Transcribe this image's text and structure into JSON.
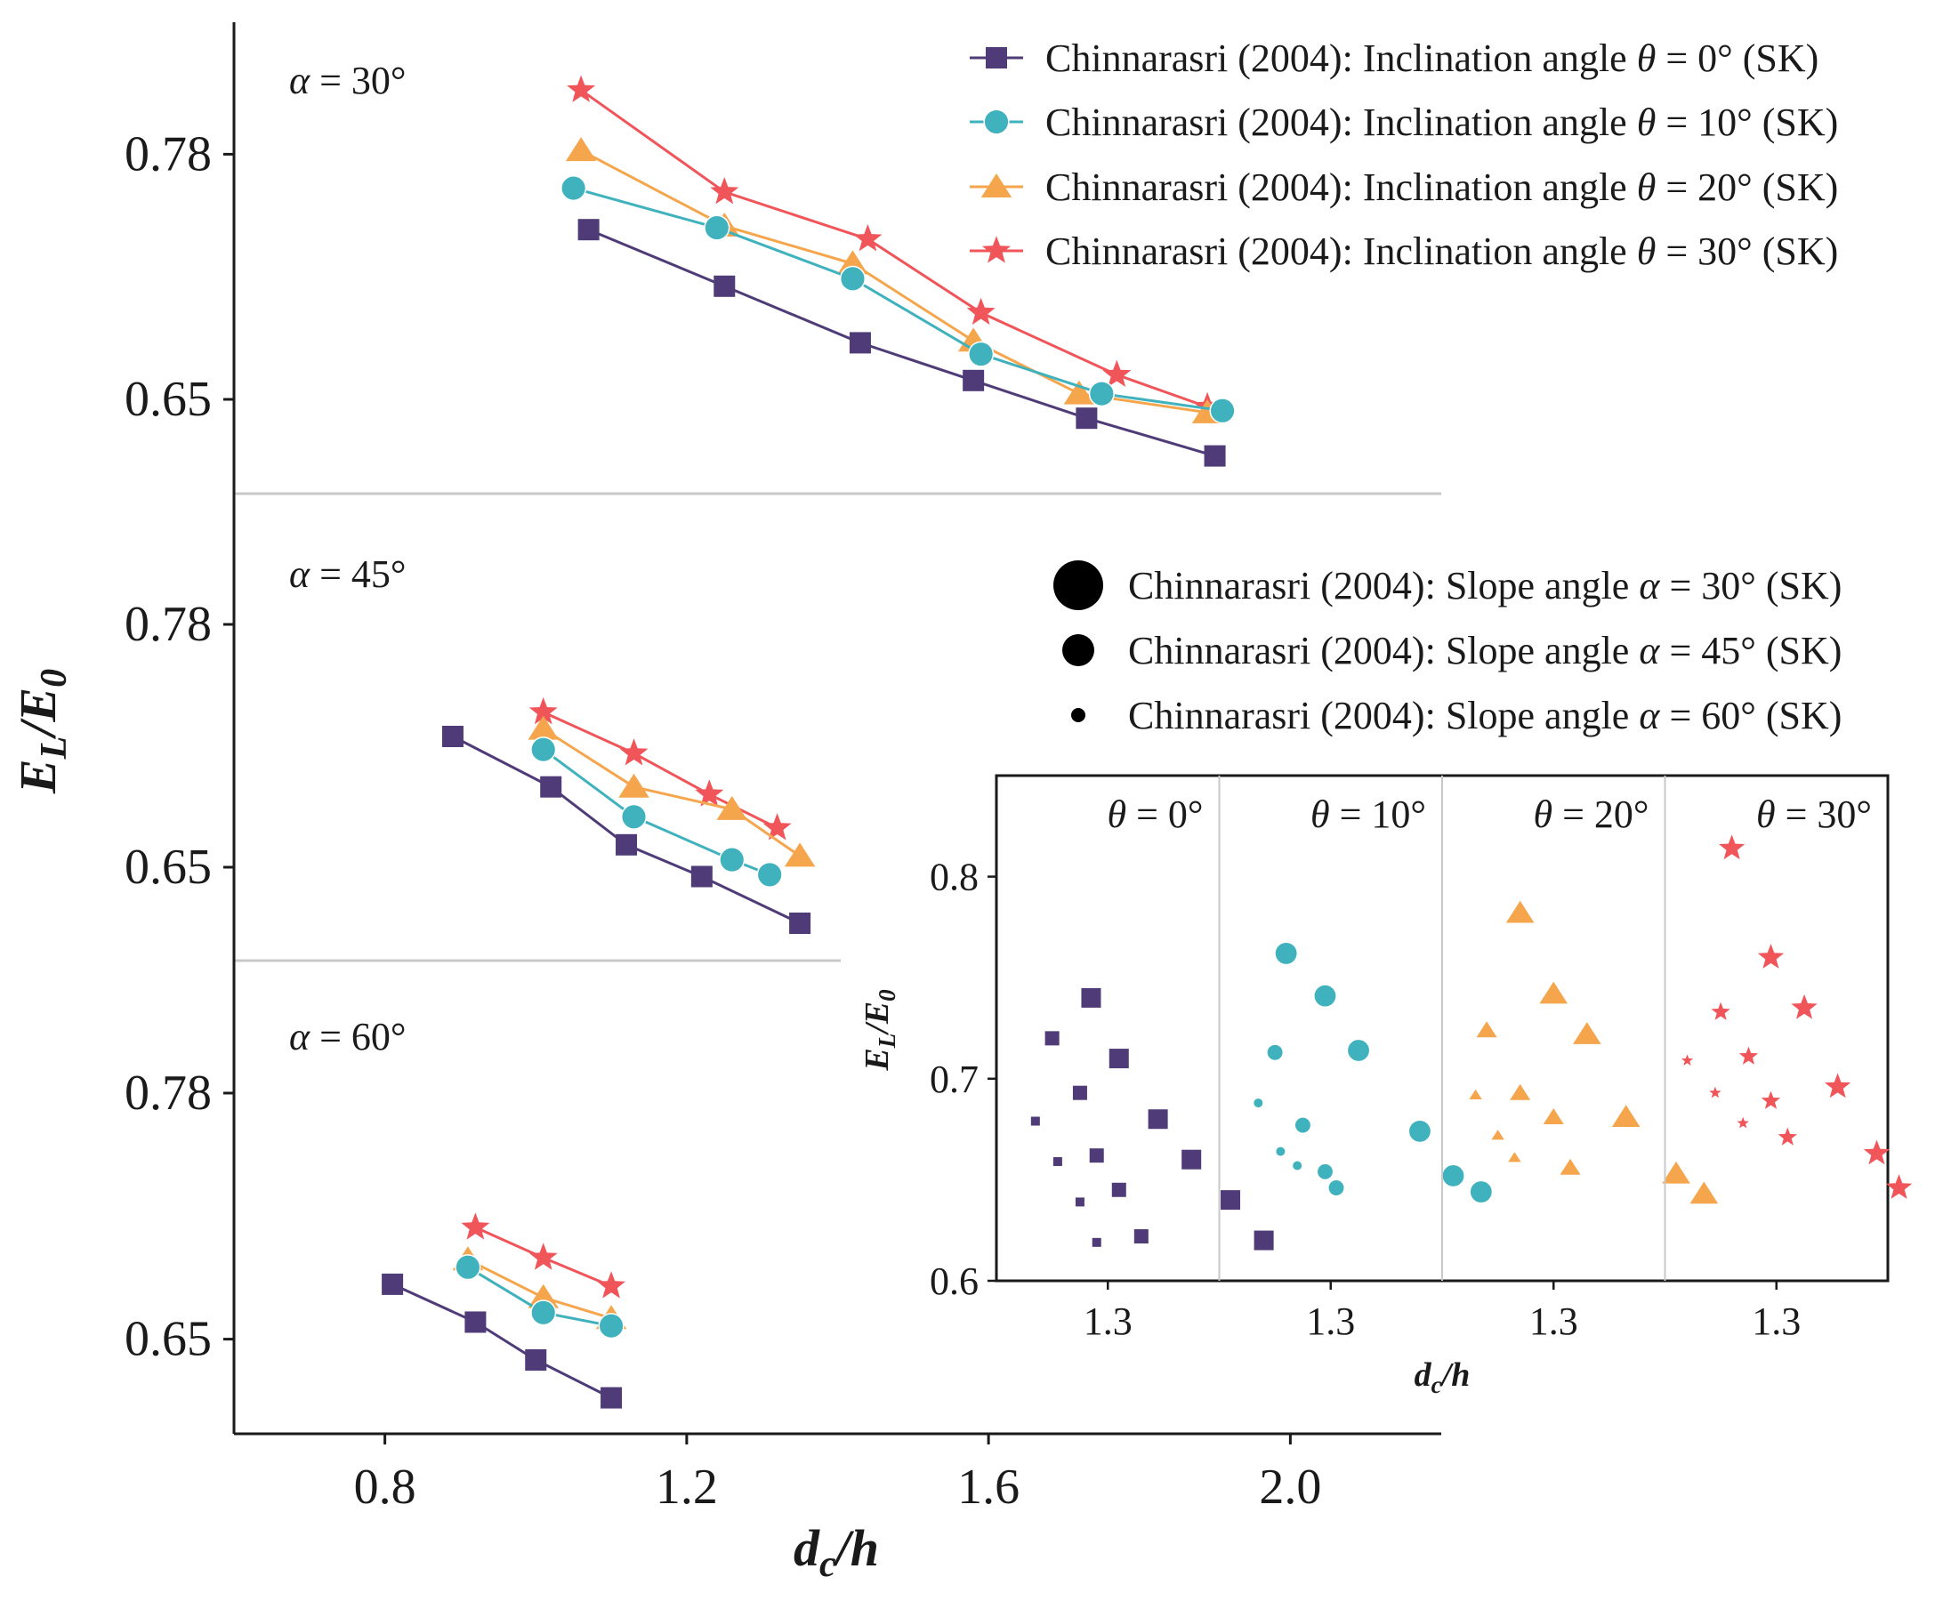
{
  "chart_data": {
    "type": "line",
    "x_label": {
      "var": "d",
      "sub": "c",
      "tail": "/h"
    },
    "y_label": {
      "main": "E",
      "sub1": "L",
      "slash": "/E",
      "sub2": "0"
    },
    "x_ticks": [
      "0.8",
      "1.2",
      "1.6",
      "2.0"
    ],
    "x_tick_values": [
      0.8,
      1.2,
      1.6,
      2.0
    ],
    "xlim": [
      0.6,
      2.2
    ],
    "y_tick_labels": [
      "0.65",
      "0.78"
    ],
    "y_tick_values": [
      0.65,
      0.78
    ],
    "panel_ylim": [
      0.6,
      0.85
    ],
    "colors": {
      "theta0": "#4e3b77",
      "theta10": "#3fb2bd",
      "theta20": "#f5a64d",
      "theta30": "#f0555a",
      "divider": "#c8c8c8",
      "axis": "#1a1a1a"
    },
    "panels": [
      {
        "label": "α = 30°",
        "series": [
          {
            "theta": 0,
            "marker": "square",
            "x": [
              1.07,
              1.25,
              1.43,
              1.58,
              1.73,
              1.9
            ],
            "y": [
              0.74,
              0.71,
              0.68,
              0.66,
              0.64,
              0.62
            ]
          },
          {
            "theta": 10,
            "marker": "circle",
            "x": [
              1.05,
              1.24,
              1.42,
              1.59,
              1.75,
              1.91
            ],
            "y": [
              0.762,
              0.741,
              0.714,
              0.674,
              0.653,
              0.644
            ]
          },
          {
            "theta": 20,
            "marker": "triangle",
            "x": [
              1.06,
              1.25,
              1.42,
              1.58,
              1.72,
              1.89
            ],
            "y": [
              0.782,
              0.742,
              0.722,
              0.681,
              0.653,
              0.643
            ]
          },
          {
            "theta": 30,
            "marker": "star",
            "x": [
              1.06,
              1.25,
              1.44,
              1.59,
              1.77,
              1.89
            ],
            "y": [
              0.814,
              0.76,
              0.735,
              0.696,
              0.663,
              0.646
            ]
          }
        ]
      },
      {
        "label": "α = 45°",
        "series": [
          {
            "theta": 0,
            "marker": "square",
            "x": [
              0.89,
              1.02,
              1.12,
              1.22,
              1.35
            ],
            "y": [
              0.72,
              0.693,
              0.662,
              0.645,
              0.62
            ]
          },
          {
            "theta": 10,
            "marker": "circle",
            "x": [
              1.01,
              1.13,
              1.26,
              1.31
            ],
            "y": [
              0.713,
              0.677,
              0.654,
              0.646
            ]
          },
          {
            "theta": 20,
            "marker": "triangle",
            "x": [
              1.01,
              1.13,
              1.26,
              1.35
            ],
            "y": [
              0.724,
              0.693,
              0.681,
              0.656
            ]
          },
          {
            "theta": 30,
            "marker": "star",
            "x": [
              1.01,
              1.13,
              1.23,
              1.32
            ],
            "y": [
              0.733,
              0.711,
              0.689,
              0.671
            ]
          }
        ]
      },
      {
        "label": "α = 60°",
        "series": [
          {
            "theta": 0,
            "marker": "square",
            "x": [
              0.81,
              0.92,
              1.0,
              1.1
            ],
            "y": [
              0.679,
              0.659,
              0.639,
              0.619
            ]
          },
          {
            "theta": 10,
            "marker": "circle",
            "x": [
              0.91,
              1.01,
              1.1
            ],
            "y": [
              0.688,
              0.664,
              0.657
            ]
          },
          {
            "theta": 20,
            "marker": "triangle",
            "x": [
              0.91,
              1.01,
              1.1
            ],
            "y": [
              0.692,
              0.672,
              0.661
            ]
          },
          {
            "theta": 30,
            "marker": "star",
            "x": [
              0.92,
              1.01,
              1.1
            ],
            "y": [
              0.709,
              0.693,
              0.678
            ]
          }
        ]
      }
    ],
    "legend_theta": [
      {
        "marker": "square",
        "prefix": "Chinnarasri (2004): Inclination angle ",
        "var": "θ",
        "suffix": " = 0° (SK)"
      },
      {
        "marker": "circle",
        "prefix": "Chinnarasri (2004): Inclination angle ",
        "var": "θ",
        "suffix": " = 10° (SK)"
      },
      {
        "marker": "triangle",
        "prefix": "Chinnarasri (2004): Inclination angle ",
        "var": "θ",
        "suffix": " = 20° (SK)"
      },
      {
        "marker": "star",
        "prefix": "Chinnarasri (2004): Inclination angle ",
        "var": "θ",
        "suffix": " = 30° (SK)"
      }
    ],
    "legend_alpha": [
      {
        "size": "large",
        "prefix": "Chinnarasri (2004): Slope angle ",
        "var": "α",
        "suffix": " = 30° (SK)"
      },
      {
        "size": "medium",
        "prefix": "Chinnarasri (2004): Slope angle ",
        "var": "α",
        "suffix": " = 45° (SK)"
      },
      {
        "size": "small",
        "prefix": "Chinnarasri (2004): Slope angle ",
        "var": "α",
        "suffix": " = 60° (SK)"
      }
    ],
    "inset": {
      "type": "scatter",
      "x_label": {
        "var": "d",
        "sub": "c",
        "tail": "/h"
      },
      "y_label": {
        "main": "E",
        "sub1": "L",
        "slash": "/E",
        "sub2": "0"
      },
      "y_ticks": [
        "0.6",
        "0.7",
        "0.8"
      ],
      "y_tick_values": [
        0.6,
        0.7,
        0.8
      ],
      "ylim": [
        0.6,
        0.85
      ],
      "xlim": [
        1.1,
        1.5
      ],
      "x_tick": "1.3",
      "x_tick_value": 1.3,
      "facets": [
        {
          "label_var": "θ",
          "label_suffix": " = 0°",
          "theta": 0,
          "marker": "square",
          "points": [
            {
              "alpha": 30,
              "x": 1.27,
              "y": 0.74
            },
            {
              "alpha": 30,
              "x": 1.32,
              "y": 0.71
            },
            {
              "alpha": 30,
              "x": 1.39,
              "y": 0.68
            },
            {
              "alpha": 30,
              "x": 1.45,
              "y": 0.66
            },
            {
              "alpha": 30,
              "x": 1.52,
              "y": 0.64
            },
            {
              "alpha": 30,
              "x": 1.58,
              "y": 0.62
            },
            {
              "alpha": 45,
              "x": 1.2,
              "y": 0.72
            },
            {
              "alpha": 45,
              "x": 1.25,
              "y": 0.693
            },
            {
              "alpha": 45,
              "x": 1.28,
              "y": 0.662
            },
            {
              "alpha": 45,
              "x": 1.32,
              "y": 0.645
            },
            {
              "alpha": 45,
              "x": 1.36,
              "y": 0.622
            },
            {
              "alpha": 60,
              "x": 1.17,
              "y": 0.679
            },
            {
              "alpha": 60,
              "x": 1.21,
              "y": 0.659
            },
            {
              "alpha": 60,
              "x": 1.25,
              "y": 0.639
            },
            {
              "alpha": 60,
              "x": 1.28,
              "y": 0.619
            }
          ]
        },
        {
          "label_var": "θ",
          "label_suffix": " = 10°",
          "theta": 10,
          "marker": "circle",
          "points": [
            {
              "alpha": 30,
              "x": 1.22,
              "y": 0.762
            },
            {
              "alpha": 30,
              "x": 1.29,
              "y": 0.741
            },
            {
              "alpha": 30,
              "x": 1.35,
              "y": 0.714
            },
            {
              "alpha": 30,
              "x": 1.46,
              "y": 0.674
            },
            {
              "alpha": 30,
              "x": 1.52,
              "y": 0.652
            },
            {
              "alpha": 30,
              "x": 1.57,
              "y": 0.644
            },
            {
              "alpha": 45,
              "x": 1.2,
              "y": 0.713
            },
            {
              "alpha": 45,
              "x": 1.25,
              "y": 0.677
            },
            {
              "alpha": 45,
              "x": 1.29,
              "y": 0.654
            },
            {
              "alpha": 45,
              "x": 1.31,
              "y": 0.646
            },
            {
              "alpha": 60,
              "x": 1.17,
              "y": 0.688
            },
            {
              "alpha": 60,
              "x": 1.21,
              "y": 0.664
            },
            {
              "alpha": 60,
              "x": 1.24,
              "y": 0.657
            }
          ]
        },
        {
          "label_var": "θ",
          "label_suffix": " = 20°",
          "theta": 20,
          "marker": "triangle",
          "points": [
            {
              "alpha": 30,
              "x": 1.24,
              "y": 0.782
            },
            {
              "alpha": 30,
              "x": 1.3,
              "y": 0.742
            },
            {
              "alpha": 30,
              "x": 1.36,
              "y": 0.722
            },
            {
              "alpha": 30,
              "x": 1.43,
              "y": 0.681
            },
            {
              "alpha": 30,
              "x": 1.52,
              "y": 0.653
            },
            {
              "alpha": 30,
              "x": 1.57,
              "y": 0.643
            },
            {
              "alpha": 45,
              "x": 1.18,
              "y": 0.724
            },
            {
              "alpha": 45,
              "x": 1.24,
              "y": 0.693
            },
            {
              "alpha": 45,
              "x": 1.3,
              "y": 0.681
            },
            {
              "alpha": 45,
              "x": 1.33,
              "y": 0.656
            },
            {
              "alpha": 60,
              "x": 1.16,
              "y": 0.692
            },
            {
              "alpha": 60,
              "x": 1.2,
              "y": 0.672
            },
            {
              "alpha": 60,
              "x": 1.23,
              "y": 0.661
            }
          ]
        },
        {
          "label_var": "θ",
          "label_suffix": " = 30°",
          "theta": 30,
          "marker": "star",
          "points": [
            {
              "alpha": 30,
              "x": 1.22,
              "y": 0.814
            },
            {
              "alpha": 30,
              "x": 1.29,
              "y": 0.76
            },
            {
              "alpha": 30,
              "x": 1.35,
              "y": 0.735
            },
            {
              "alpha": 30,
              "x": 1.41,
              "y": 0.696
            },
            {
              "alpha": 30,
              "x": 1.48,
              "y": 0.663
            },
            {
              "alpha": 30,
              "x": 1.52,
              "y": 0.646
            },
            {
              "alpha": 45,
              "x": 1.2,
              "y": 0.733
            },
            {
              "alpha": 45,
              "x": 1.25,
              "y": 0.711
            },
            {
              "alpha": 45,
              "x": 1.29,
              "y": 0.689
            },
            {
              "alpha": 45,
              "x": 1.32,
              "y": 0.671
            },
            {
              "alpha": 60,
              "x": 1.14,
              "y": 0.709
            },
            {
              "alpha": 60,
              "x": 1.19,
              "y": 0.693
            },
            {
              "alpha": 60,
              "x": 1.24,
              "y": 0.678
            }
          ]
        }
      ]
    }
  }
}
